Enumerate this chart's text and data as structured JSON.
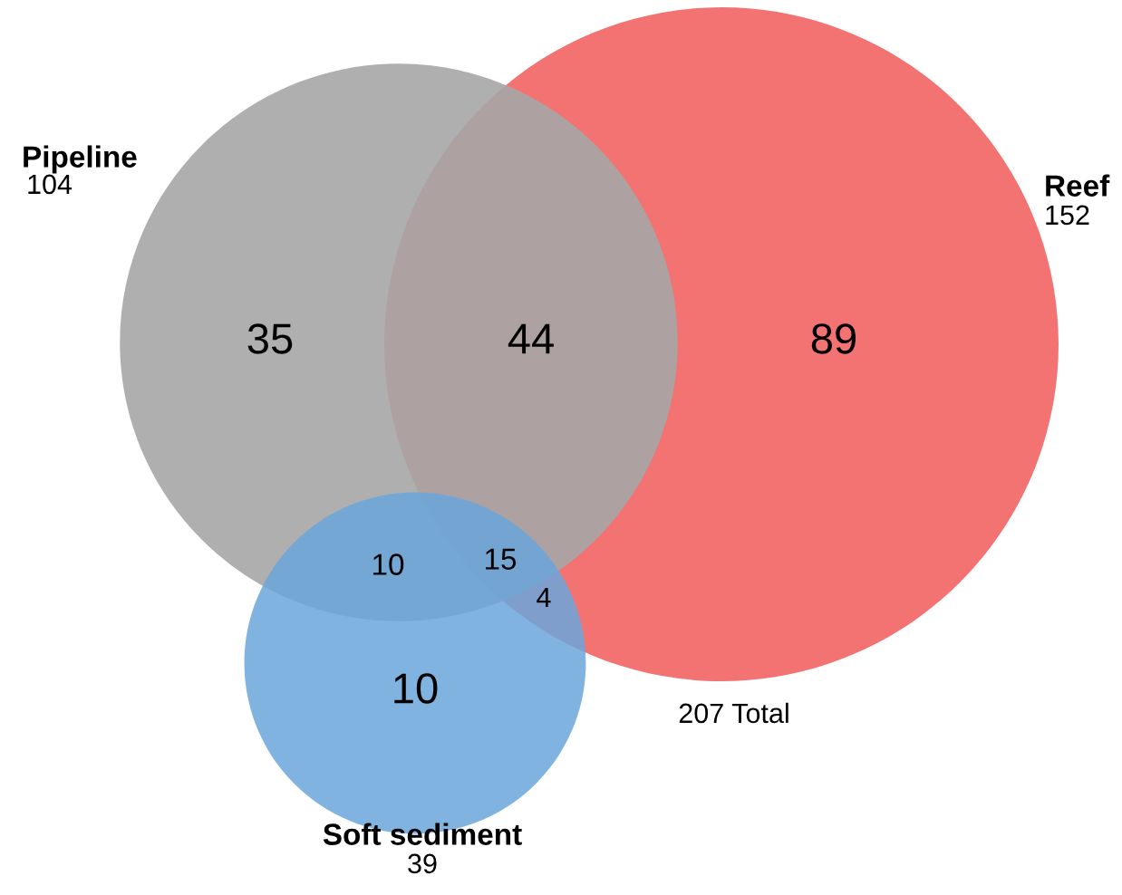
{
  "chart_data": {
    "type": "other",
    "categories": [
      "Pipeline",
      "Reef",
      "Soft sediment"
    ],
    "values": [
      104,
      152,
      39
    ],
    "data_labels": true,
    "colors": [
      "#a6a6a6",
      "#f26b6b",
      "#6aa6da"
    ],
    "annotations": [
      "35",
      "44",
      "89",
      "10",
      "15",
      "4",
      "10",
      "207 Total"
    ]
  }
}
